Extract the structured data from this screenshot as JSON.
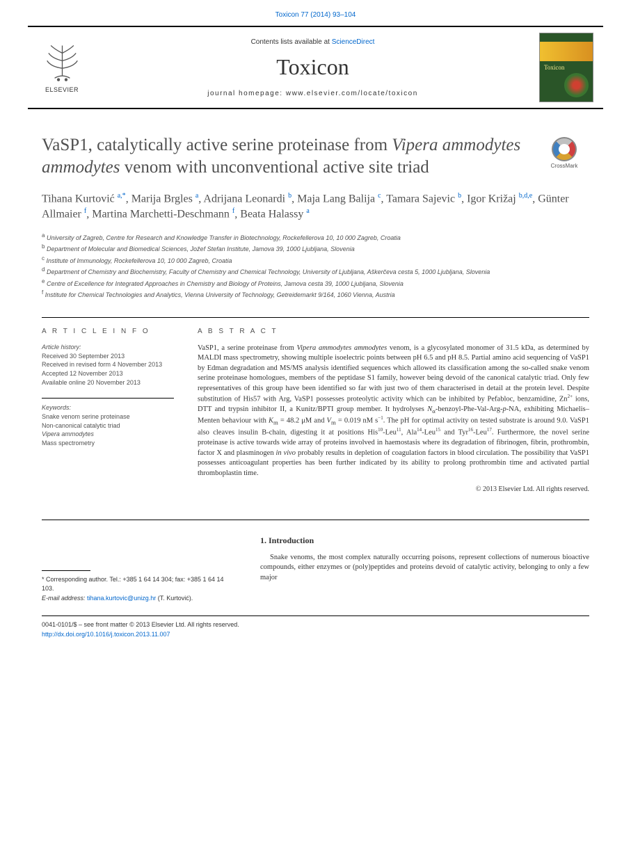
{
  "header": {
    "top_link": "Toxicon 77 (2014) 93–104",
    "contents_text": "Contents lists available at ",
    "sciencedirect": "ScienceDirect",
    "journal_name": "Toxicon",
    "homepage_label": "journal homepage: ",
    "homepage_url": "www.elsevier.com/locate/toxicon",
    "elsevier": "ELSEVIER",
    "cover_title": "Toxicon"
  },
  "title": {
    "pre": "VaSP1, catalytically active serine proteinase from ",
    "italic": "Vipera ammodytes ammodytes",
    "post": " venom with unconventional active site triad"
  },
  "crossmark": "CrossMark",
  "authors_html": "Tihana Kurtović <sup>a,*</sup>, Marija Brgles <sup>a</sup>, Adrijana Leonardi <sup>b</sup>, Maja Lang Balija <sup>c</sup>, Tamara Sajevic <sup>b</sup>, Igor Križaj <sup>b,d,e</sup>, Günter Allmaier <sup>f</sup>, Martina Marchetti-Deschmann <sup>f</sup>, Beata Halassy <sup>a</sup>",
  "affiliations": [
    {
      "sup": "a",
      "text": "University of Zagreb, Centre for Research and Knowledge Transfer in Biotechnology, Rockefellerova 10, 10 000 Zagreb, Croatia"
    },
    {
      "sup": "b",
      "text": "Department of Molecular and Biomedical Sciences, Jožef Stefan Institute, Jamova 39, 1000 Ljubljana, Slovenia"
    },
    {
      "sup": "c",
      "text": "Institute of Immunology, Rockefellerova 10, 10 000 Zagreb, Croatia"
    },
    {
      "sup": "d",
      "text": "Department of Chemistry and Biochemistry, Faculty of Chemistry and Chemical Technology, University of Ljubljana, Aškerčeva cesta 5, 1000 Ljubljana, Slovenia"
    },
    {
      "sup": "e",
      "text": "Centre of Excellence for Integrated Approaches in Chemistry and Biology of Proteins, Jamova cesta 39, 1000 Ljubljana, Slovenia"
    },
    {
      "sup": "f",
      "text": "Institute for Chemical Technologies and Analytics, Vienna University of Technology, Getreidemarkt 9/164, 1060 Vienna, Austria"
    }
  ],
  "article_info": {
    "heading": "A R T I C L E   I N F O",
    "history_heading": "Article history:",
    "history": [
      "Received 30 September 2013",
      "Received in revised form 4 November 2013",
      "Accepted 12 November 2013",
      "Available online 20 November 2013"
    ],
    "keywords_heading": "Keywords:",
    "keywords": [
      "Snake venom serine proteinase",
      "Non-canonical catalytic triad",
      "Vipera ammodytes",
      "Mass spectrometry"
    ]
  },
  "abstract": {
    "heading": "A B S T R A C T",
    "text": "VaSP1, a serine proteinase from <span class=\"italic\">Vipera ammodytes ammodytes</span> venom, is a glycosylated monomer of 31.5 kDa, as determined by MALDI mass spectrometry, showing multiple isoelectric points between pH 6.5 and pH 8.5. Partial amino acid sequencing of VaSP1 by Edman degradation and MS/MS analysis identified sequences which allowed its classification among the so-called snake venom serine proteinase homologues, members of the peptidase S1 family, however being devoid of the canonical catalytic triad. Only few representatives of this group have been identified so far with just two of them characterised in detail at the protein level. Despite substitution of His57 with Arg, VaSP1 possesses proteolytic activity which can be inhibited by Pefabloc, benzamidine, Zn<sup>2+</sup> ions, DTT and trypsin inhibitor II, a Kunitz/BPTI group member. It hydrolyses <span class=\"italic\">N</span><sub>α</sub>-benzoyl-Phe-Val-Arg-<span class=\"italic\">p</span>-NA, exhibiting Michaelis–Menten behaviour with <span class=\"italic\">K</span><sub>m</sub> = 48.2 μM and <span class=\"italic\">V</span><sub>m</sub> = 0.019 nM s<sup>−1</sup>. The pH for optimal activity on tested substrate is around 9.0. VaSP1 also cleaves insulin B-chain, digesting it at positions His<sup>10</sup>-Leu<sup>11</sup>, Ala<sup>14</sup>-Leu<sup>15</sup> and Tyr<sup>16</sup>-Leu<sup>17</sup>. Furthermore, the novel serine proteinase is active towards wide array of proteins involved in haemostasis where its degradation of fibrinogen, fibrin, prothrombin, factor X and plasminogen <span class=\"italic\">in vivo</span> probably results in depletion of coagulation factors in blood circulation. The possibility that VaSP1 possesses anticoagulant properties has been further indicated by its ability to prolong prothrombin time and activated partial thromboplastin time.",
    "copyright": "© 2013 Elsevier Ltd. All rights reserved."
  },
  "corresponding": {
    "line1": "* Corresponding author. Tel.: +385 1 64 14 304; fax: +385 1 64 14 103.",
    "email_label": "E-mail address: ",
    "email": "tihana.kurtovic@unizg.hr",
    "email_suffix": " (T. Kurtović)."
  },
  "intro": {
    "heading": "1. Introduction",
    "text": "Snake venoms, the most complex naturally occurring poisons, represent collections of numerous bioactive compounds, either enzymes or (poly)peptides and proteins devoid of catalytic activity, belonging to only a few major"
  },
  "footer": {
    "line1": "0041-0101/$ – see front matter © 2013 Elsevier Ltd. All rights reserved.",
    "doi": "http://dx.doi.org/10.1016/j.toxicon.2013.11.007"
  },
  "colors": {
    "link": "#0066cc",
    "text": "#333333",
    "heading_gray": "#505050",
    "cover_bg": "#2a5528"
  }
}
